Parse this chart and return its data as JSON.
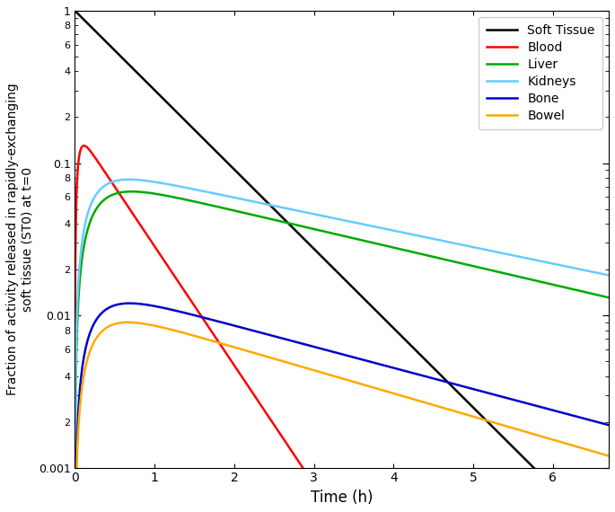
{
  "title": "",
  "xlabel": "Time (h)",
  "ylabel": "Fraction of activity released in rapidly-exchanging\nsoft tissue (ST0) at t=0",
  "xlim": [
    0,
    6.7
  ],
  "ylim": [
    0.001,
    1.0
  ],
  "legend_labels": [
    "Soft Tissue",
    "Blood",
    "Liver",
    "Kidneys",
    "Bone",
    "Bowel"
  ],
  "line_colors": [
    "#000000",
    "#ff0000",
    "#00aa00",
    "#66ccff",
    "#0000cc",
    "#ffaa00"
  ],
  "line_width": 1.8,
  "soft_tissue": {
    "A": 1.0,
    "lambda": 1.2
  },
  "blood": {
    "A_peak": 0.13,
    "k_in": 25.0,
    "k_out": 1.8
  },
  "liver": {
    "A_peak": 0.065,
    "k_in": 4.0,
    "k_out": 0.28
  },
  "kidneys": {
    "A_peak": 0.078,
    "k_in": 4.5,
    "k_out": 0.25
  },
  "bone": {
    "A_peak": 0.012,
    "k_in": 4.0,
    "k_out": 0.32
  },
  "bowel": {
    "A_peak": 0.009,
    "k_in": 4.0,
    "k_out": 0.35
  }
}
